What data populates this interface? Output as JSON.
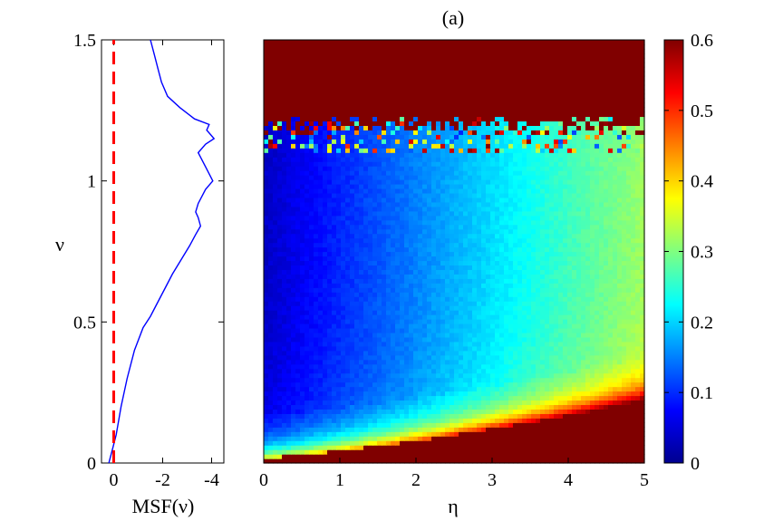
{
  "panel_label": "(a)",
  "chart_data": [
    {
      "type": "line",
      "name": "msf",
      "xlabel": "MSF(ν)",
      "ylabel": "ν",
      "xlim": [
        0.5,
        -4.5
      ],
      "ylim": [
        0,
        1.5
      ],
      "x_axis_reversed": true,
      "xticks": [
        0,
        -2,
        -4
      ],
      "xtick_labels": [
        "0",
        "-2",
        "-4"
      ],
      "yticks": [
        0,
        0.5,
        1,
        1.5
      ],
      "ytick_labels": [
        "0",
        "0.5",
        "1",
        "1.5"
      ],
      "grid": false,
      "series": [
        {
          "color": "#0000ff",
          "style": "solid",
          "points": [
            [
              0.2,
              0.0
            ],
            [
              0.05,
              0.05
            ],
            [
              -0.1,
              0.1
            ],
            [
              -0.3,
              0.2
            ],
            [
              -0.55,
              0.3
            ],
            [
              -0.85,
              0.4
            ],
            [
              -1.2,
              0.48
            ],
            [
              -1.5,
              0.52
            ],
            [
              -1.8,
              0.57
            ],
            [
              -2.1,
              0.62
            ],
            [
              -2.4,
              0.67
            ],
            [
              -2.75,
              0.72
            ],
            [
              -3.1,
              0.77
            ],
            [
              -3.35,
              0.81
            ],
            [
              -3.55,
              0.84
            ],
            [
              -3.45,
              0.87
            ],
            [
              -3.35,
              0.89
            ],
            [
              -3.45,
              0.92
            ],
            [
              -3.75,
              0.97
            ],
            [
              -4.05,
              1.0
            ],
            [
              -3.75,
              1.05
            ],
            [
              -3.45,
              1.1
            ],
            [
              -3.75,
              1.13
            ],
            [
              -4.1,
              1.15
            ],
            [
              -3.8,
              1.18
            ],
            [
              -3.9,
              1.2
            ],
            [
              -3.3,
              1.22
            ],
            [
              -2.7,
              1.26
            ],
            [
              -2.2,
              1.3
            ],
            [
              -1.95,
              1.35
            ],
            [
              -1.8,
              1.4
            ],
            [
              -1.65,
              1.45
            ],
            [
              -1.5,
              1.5
            ]
          ]
        },
        {
          "color": "#ff0000",
          "style": "dashed",
          "points": [
            [
              0,
              0
            ],
            [
              0,
              1.5
            ]
          ]
        }
      ]
    },
    {
      "type": "heatmap",
      "name": "heatmap",
      "xlabel": "η",
      "ylabel": "",
      "xlim": [
        0,
        5
      ],
      "ylim": [
        0,
        1.5
      ],
      "xticks": [
        0,
        1,
        2,
        3,
        4,
        5
      ],
      "xtick_labels": [
        "0",
        "1",
        "2",
        "3",
        "4",
        "5"
      ],
      "colormap": "jet",
      "clim": [
        0,
        0.6
      ],
      "colorbar_ticks": [
        0,
        0.1,
        0.2,
        0.3,
        0.4,
        0.5,
        0.6
      ],
      "colorbar_tick_labels": [
        "0",
        "0.1",
        "0.2",
        "0.3",
        "0.4",
        "0.5",
        "0.6"
      ],
      "regions": {
        "upper_boundary_nu": 1.2,
        "upper_boundary_noise_width": 0.07,
        "lower_boundary_nu_at_eta0": 0.02,
        "lower_boundary_nu_at_eta5": 0.22,
        "saturated_value": 0.6
      }
    }
  ]
}
